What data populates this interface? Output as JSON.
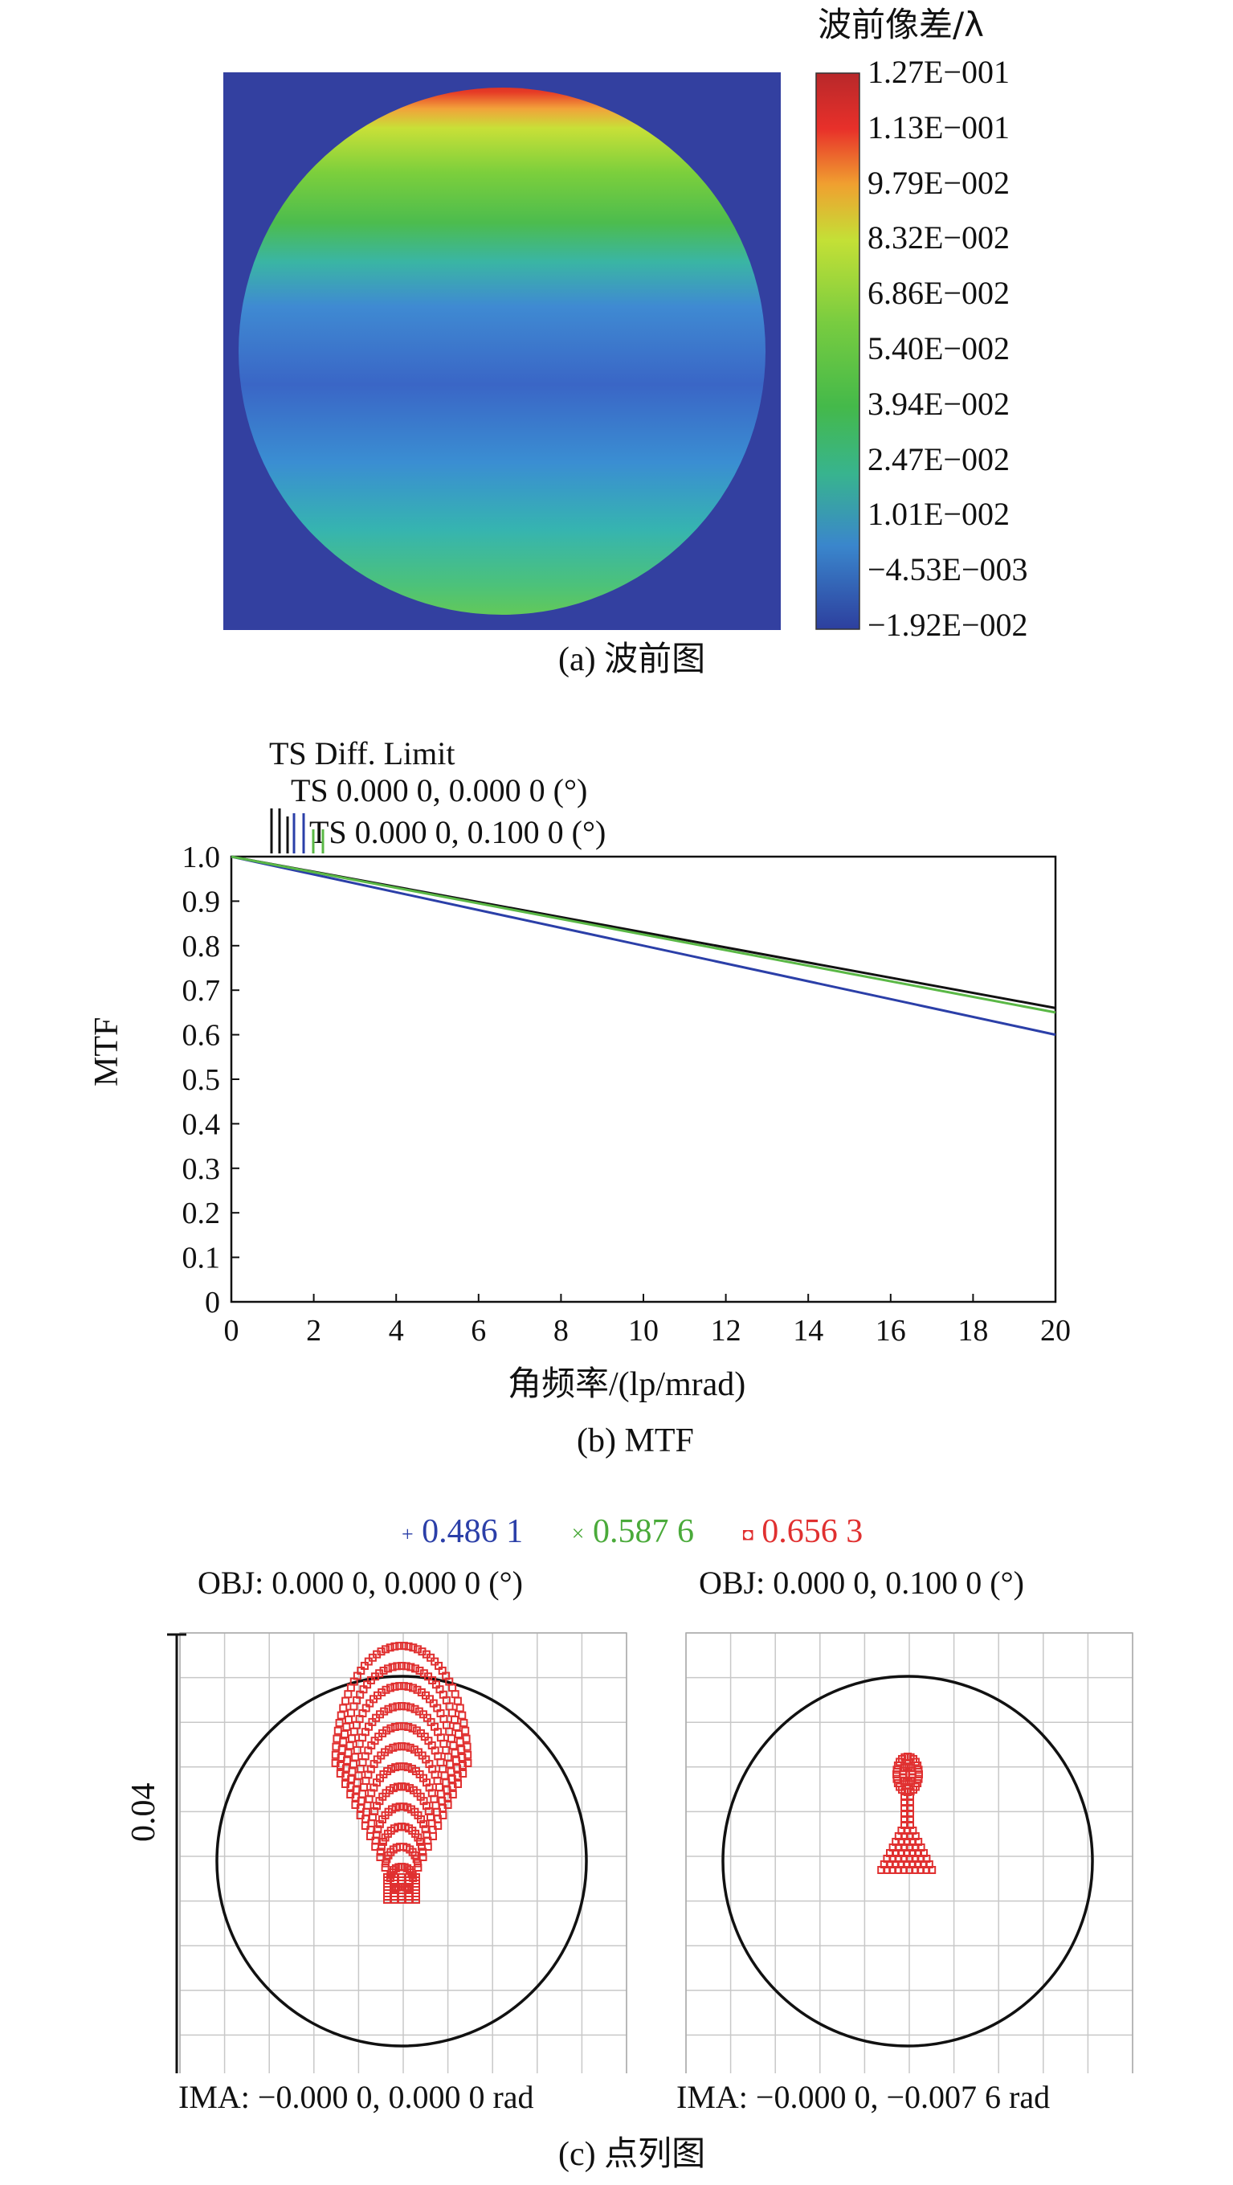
{
  "wavefront": {
    "cbar_title": "波前像差/λ",
    "cbar_ticks": [
      "1.27E−001",
      "1.13E−001",
      "9.79E−002",
      "8.32E−002",
      "6.86E−002",
      "5.40E−002",
      "3.94E−002",
      "2.47E−002",
      "1.01E−002",
      "−4.53E−003",
      "−1.92E−002"
    ],
    "caption": "(a) 波前图",
    "colors": {
      "background": "#3340a0",
      "low": "#2d3f9e",
      "mid": "#4abb4a",
      "high": "#c82828"
    }
  },
  "chart_data": {
    "type": "line",
    "xlabel": "角频率/(lp/mrad)",
    "ylabel": "MTF",
    "xlim": [
      0,
      20
    ],
    "ylim": [
      0,
      1.0
    ],
    "x_ticks": [
      "0",
      "2",
      "4",
      "6",
      "8",
      "10",
      "12",
      "14",
      "16",
      "18",
      "20"
    ],
    "y_ticks": [
      "0",
      "0.1",
      "0.2",
      "0.3",
      "0.4",
      "0.5",
      "0.6",
      "0.7",
      "0.8",
      "0.9",
      "1.0"
    ],
    "legend": [
      "TS Diff. Limit",
      "TS 0.000 0, 0.000 0 (°)",
      "TS 0.000 0, 0.100 0 (°)"
    ],
    "series": [
      {
        "name": "TS Diff. Limit",
        "color": "#111111",
        "x": [
          0,
          20
        ],
        "y": [
          1.0,
          0.66
        ]
      },
      {
        "name": "TS 0.000 0, 0.000 0 (°)",
        "color": "#2b3fa8",
        "x": [
          0,
          20
        ],
        "y": [
          1.0,
          0.6
        ]
      },
      {
        "name": "TS 0.000 0, 0.100 0 (°)",
        "color": "#5ab846",
        "x": [
          0,
          20
        ],
        "y": [
          1.0,
          0.65
        ]
      }
    ],
    "caption": "(b) MTF"
  },
  "spot": {
    "legend": [
      {
        "symbol": "+",
        "text": "0.486 1",
        "color": "#2b3fa8"
      },
      {
        "symbol": "×",
        "text": "0.587 6",
        "color": "#4aaa3a"
      },
      {
        "symbol": "◘",
        "text": "0.656 3",
        "color": "#e03030"
      }
    ],
    "scale_label": "0.04",
    "panels": [
      {
        "obj": "OBJ: 0.000 0, 0.000 0 (°)",
        "ima": "IMA: −0.000 0, 0.000 0 rad"
      },
      {
        "obj": "OBJ: 0.000 0, 0.100 0 (°)",
        "ima": "IMA: −0.000 0, −0.007 6 rad"
      }
    ],
    "caption": "(c) 点列图"
  }
}
